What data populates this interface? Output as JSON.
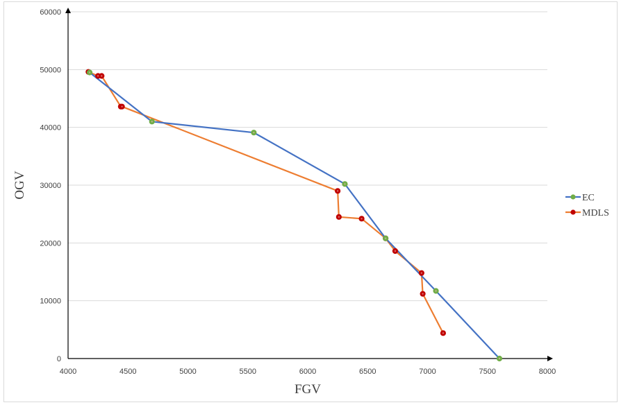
{
  "chart_data": {
    "type": "line",
    "title": "",
    "xlabel": "FGV",
    "ylabel": "OGV",
    "xlim": [
      4000,
      8000
    ],
    "ylim": [
      0,
      60000
    ],
    "x_ticks": [
      4000,
      4500,
      5000,
      5500,
      6000,
      6500,
      7000,
      7500,
      8000
    ],
    "y_ticks": [
      0,
      10000,
      20000,
      30000,
      40000,
      50000,
      60000
    ],
    "grid": "horizontal",
    "legend_position": "right",
    "series": [
      {
        "name": "EC",
        "line_color": "#4472c4",
        "marker_color": "#70ad47",
        "points": [
          [
            4180,
            49500
          ],
          [
            4700,
            41000
          ],
          [
            5550,
            39100
          ],
          [
            6310,
            30200
          ],
          [
            6650,
            20800
          ],
          [
            7070,
            11700
          ],
          [
            7600,
            0
          ]
        ]
      },
      {
        "name": "MDLS",
        "line_color": "#ed7d31",
        "marker_color": "#c00000",
        "points": [
          [
            4170,
            49600
          ],
          [
            4250,
            48900
          ],
          [
            4280,
            48900
          ],
          [
            4440,
            43600
          ],
          [
            4450,
            43600
          ],
          [
            6250,
            29000
          ],
          [
            6260,
            24500
          ],
          [
            6450,
            24200
          ],
          [
            6650,
            20800
          ],
          [
            6730,
            18600
          ],
          [
            6950,
            14800
          ],
          [
            6960,
            11200
          ],
          [
            7130,
            4400
          ]
        ]
      }
    ]
  }
}
